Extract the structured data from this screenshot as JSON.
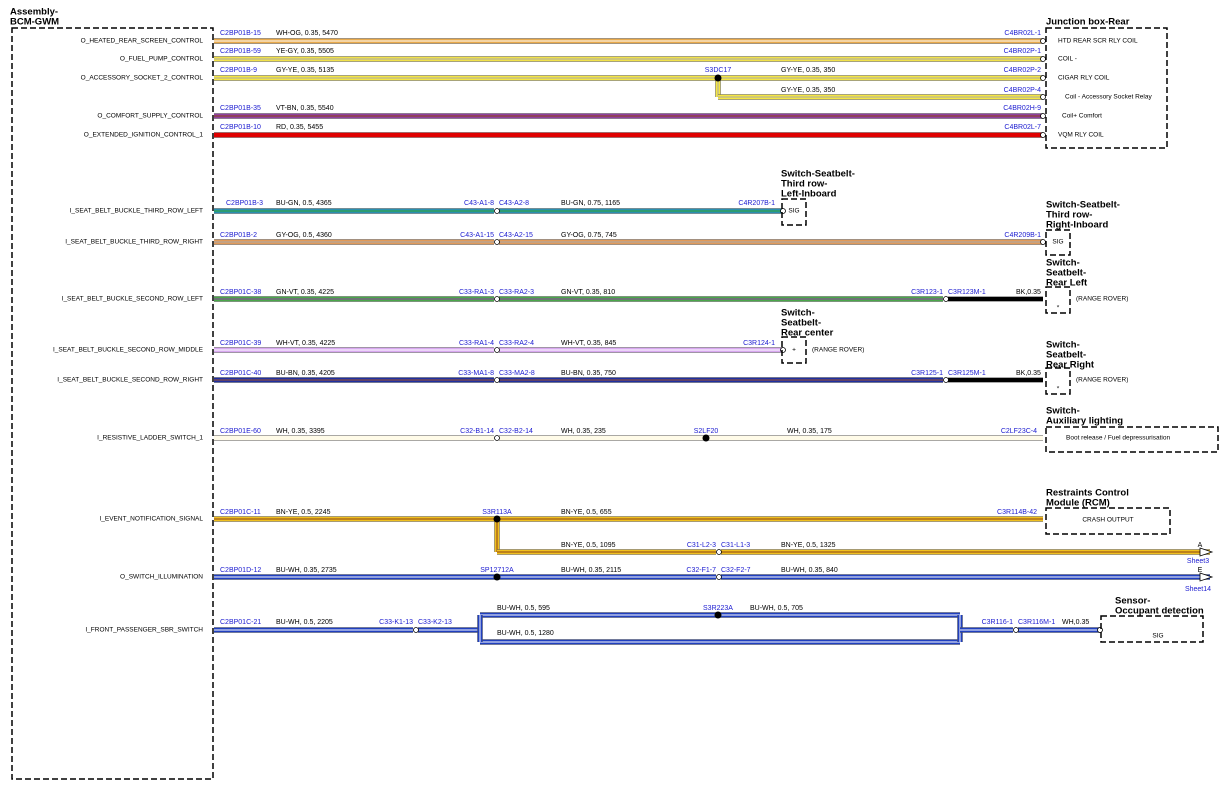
{
  "assembly": {
    "title": [
      "Assembly-",
      "BCM-GWM"
    ]
  },
  "circuits": [
    {
      "signal": "O_HEATED_REAR_SCREEN_CONTROL",
      "texts": [
        "C2BP01B-15",
        "WH-OG, 0.35, 5470",
        "C4BR02L-1"
      ]
    },
    {
      "signal": "O_FUEL_PUMP_CONTROL",
      "texts": [
        "C2BP01B-59",
        "YE-GY, 0.35, 5505",
        "C4BR02P-1"
      ]
    },
    {
      "signal": "O_ACCESSORY_SOCKET_2_CONTROL",
      "texts": [
        "C2BP01B-9",
        "GY-YE, 0.35, 5135",
        "S3DC17",
        "GY-YE, 0.35, 350",
        "C4BR02P-2",
        "GY-YE, 0.35, 350",
        "C4BR02P-4"
      ]
    },
    {
      "signal": "O_COMFORT_SUPPLY_CONTROL",
      "texts": [
        "C2BP01B-35",
        "VT-BN, 0.35, 5540",
        "C4BR02H-9"
      ]
    },
    {
      "signal": "O_EXTENDED_IGNITION_CONTROL_1",
      "texts": [
        "C2BP01B-10",
        "RD, 0.35, 5455",
        "C4BR02L-7"
      ]
    },
    {
      "signal": "I_SEAT_BELT_BUCKLE_THIRD_ROW_LEFT",
      "texts": [
        "C2BP01B-3",
        "BU-GN, 0.5, 4365",
        "C43-A1-8",
        "C43-A2-8",
        "BU-GN, 0.75, 1165",
        "C4R207B-1"
      ]
    },
    {
      "signal": "I_SEAT_BELT_BUCKLE_THIRD_ROW_RIGHT",
      "texts": [
        "C2BP01B-2",
        "GY-OG, 0.5, 4360",
        "C43-A1-15",
        "C43-A2-15",
        "GY-OG, 0.75, 745",
        "C4R209B-1"
      ]
    },
    {
      "signal": "I_SEAT_BELT_BUCKLE_SECOND_ROW_LEFT",
      "texts": [
        "C2BP01C-38",
        "GN-VT, 0.35, 4225",
        "C33-RA1-3",
        "C33-RA2-3",
        "GN-VT, 0.35, 810",
        "C3R123-1",
        "C3R123M-1",
        "BK,0.35"
      ]
    },
    {
      "signal": "I_SEAT_BELT_BUCKLE_SECOND_ROW_MIDDLE",
      "texts": [
        "C2BP01C-39",
        "WH-VT, 0.35, 4225",
        "C33-RA1-4",
        "C33-RA2-4",
        "WH-VT, 0.35, 845",
        "C3R124-1"
      ]
    },
    {
      "signal": "I_SEAT_BELT_BUCKLE_SECOND_ROW_RIGHT",
      "texts": [
        "C2BP01C-40",
        "BU-BN, 0.35, 4205",
        "C33-MA1-8",
        "C33-MA2-8",
        "BU-BN, 0.35, 750",
        "C3R125-1",
        "C3R125M-1",
        "BK,0.35"
      ]
    },
    {
      "signal": "I_RESISTIVE_LADDER_SWITCH_1",
      "texts": [
        "C2BP01E-60",
        "WH, 0.35, 3395",
        "C32-B1-14",
        "C32-B2-14",
        "WH, 0.35, 235",
        "S2LF20",
        "WH, 0.35, 175",
        "C2LF23C-4"
      ]
    },
    {
      "signal": "I_EVENT_NOTIFICATION_SIGNAL",
      "texts": [
        "C2BP01C-11",
        "BN-YE, 0.5, 2245",
        "S3R113A",
        "BN-YE, 0.5, 655",
        "C3R114B-42",
        "BN-YE, 0.5, 1095",
        "C31-L2-3",
        "C31-L1-3",
        "BN-YE, 0.5, 1325",
        "A",
        "Sheet3"
      ]
    },
    {
      "signal": "O_SWITCH_ILLUMINATION",
      "texts": [
        "C2BP01D-12",
        "BU-WH, 0.35, 2735",
        "SP12712A",
        "BU-WH, 0.35, 2115",
        "C32-F1-7",
        "C32-F2-7",
        "BU-WH, 0.35, 840",
        "E",
        "Sheet14"
      ]
    },
    {
      "signal": "I_FRONT_PASSENGER_SBR_SWITCH",
      "texts": [
        "C2BP01C-21",
        "BU-WH, 0.5, 2205",
        "C33-K1-13",
        "C33-K2-13",
        "BU-WH, 0.5, 595",
        "S3R223A",
        "BU-WH, 0.5, 705",
        "BU-WH, 0.5, 1280",
        "C3R116-1",
        "C3R116M-1",
        "WH,0.35"
      ]
    }
  ],
  "components": [
    {
      "title": [
        "Junction box-Rear"
      ],
      "pins": [
        "HTD REAR SCR RLY COIL",
        "COIL -",
        "CIGAR RLY COIL",
        "Coil - Accessory Socket Relay",
        "Coil+ Comfort",
        "VQM RLY COIL"
      ]
    },
    {
      "title": [
        "Switch-Seatbelt-",
        "Third row-",
        "Left-Inboard"
      ],
      "pins": [
        "SIG"
      ]
    },
    {
      "title": [
        "Switch-Seatbelt-",
        "Third row-",
        "Right-Inboard"
      ],
      "pins": [
        "SIG"
      ]
    },
    {
      "title": [
        "Switch-",
        "Seatbelt-",
        "Rear Left"
      ],
      "pins": [
        "*",
        "(RANGE ROVER)"
      ]
    },
    {
      "title": [
        "Switch-",
        "Seatbelt-",
        "Rear center"
      ],
      "pins": [
        "+",
        "(RANGE ROVER)"
      ]
    },
    {
      "title": [
        "Switch-",
        "Seatbelt-",
        "Rear Right"
      ],
      "pins": [
        "*",
        "(RANGE ROVER)"
      ]
    },
    {
      "title": [
        "Switch-",
        "Auxiliary lighting"
      ],
      "pins": [
        "Boot release / Fuel depressurisation"
      ]
    },
    {
      "title": [
        "Restraints Control",
        "Module (RCM)"
      ],
      "pins": [
        "CRASH OUTPUT"
      ]
    },
    {
      "title": [
        "Sensor-",
        "Occupant detection"
      ],
      "pins": [
        "SIG"
      ]
    }
  ]
}
